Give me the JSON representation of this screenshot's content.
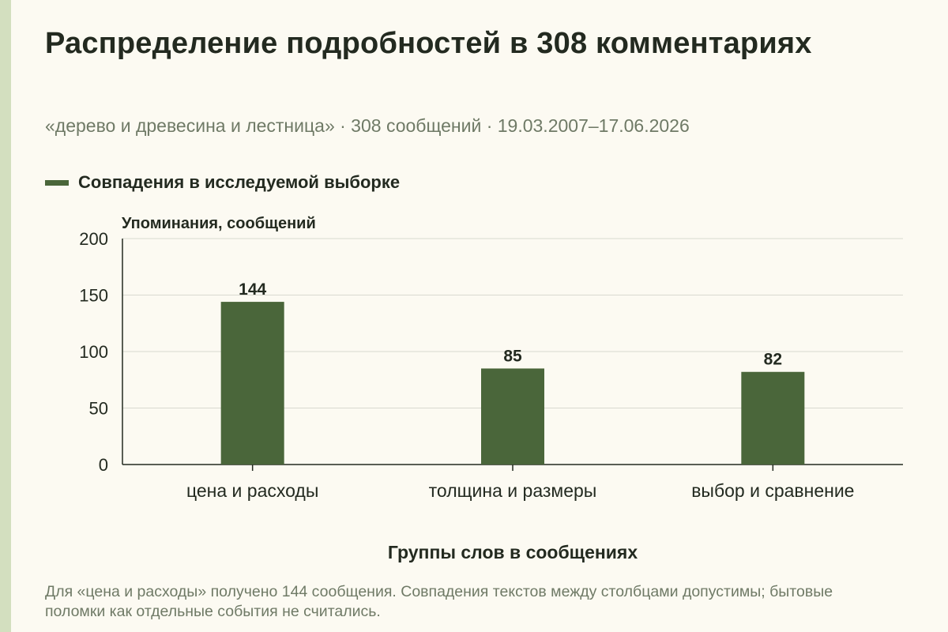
{
  "title": "Распределение подробностей в 308 комментариях",
  "subtitle": "«дерево и древесина и лестница» · 308 сообщений · 19.03.2007–17.06.2026",
  "legend": {
    "label": "Совпадения в исследуемой выборке"
  },
  "note": "Для «цена и расходы» получено 144 сообщения. Совпадения текстов между столбцами допустимы; бытовые поломки как отдельные события не считались.",
  "colors": {
    "bar": "#4a663a",
    "background": "#fcfaf2",
    "accent_strip": "#d3dfbf",
    "grid": "#d9d9d0"
  },
  "chart_data": {
    "type": "bar",
    "title": "Распределение подробностей в 308 комментариях",
    "subtitle": "«дерево и древесина и лестница» · 308 сообщений · 19.03.2007–17.06.2026",
    "xlabel": "Группы слов в сообщениях",
    "ylabel": "Упоминания, сообщений",
    "categories": [
      "цена и расходы",
      "толщина и размеры",
      "выбор и сравнение"
    ],
    "series": [
      {
        "name": "Совпадения в исследуемой выборке",
        "values": [
          144,
          85,
          82
        ]
      }
    ],
    "ylim": [
      0,
      200
    ],
    "yticks": [
      0,
      50,
      100,
      150,
      200
    ],
    "grid": true,
    "legend_position": "top-left"
  }
}
